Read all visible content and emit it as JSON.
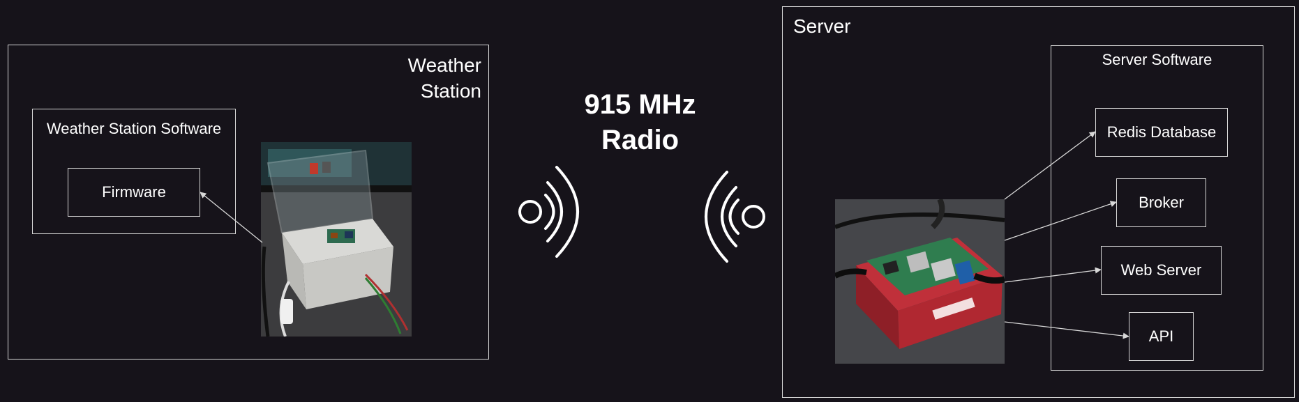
{
  "weather_station": {
    "title": "Weather Station",
    "software_label": "Weather Station Software",
    "firmware_label": "Firmware"
  },
  "radio": {
    "label": "915 MHz Radio"
  },
  "server": {
    "title": "Server",
    "software_label": "Server Software",
    "components": {
      "redis": "Redis Database",
      "broker": "Broker",
      "web_server": "Web Server",
      "api": "API"
    }
  },
  "icons": {
    "left_signal": "wireless-signal-icon",
    "right_signal": "wireless-signal-icon"
  },
  "colors": {
    "background": "#16131a",
    "stroke": "#d8d8d8",
    "text": "#ffffff"
  }
}
